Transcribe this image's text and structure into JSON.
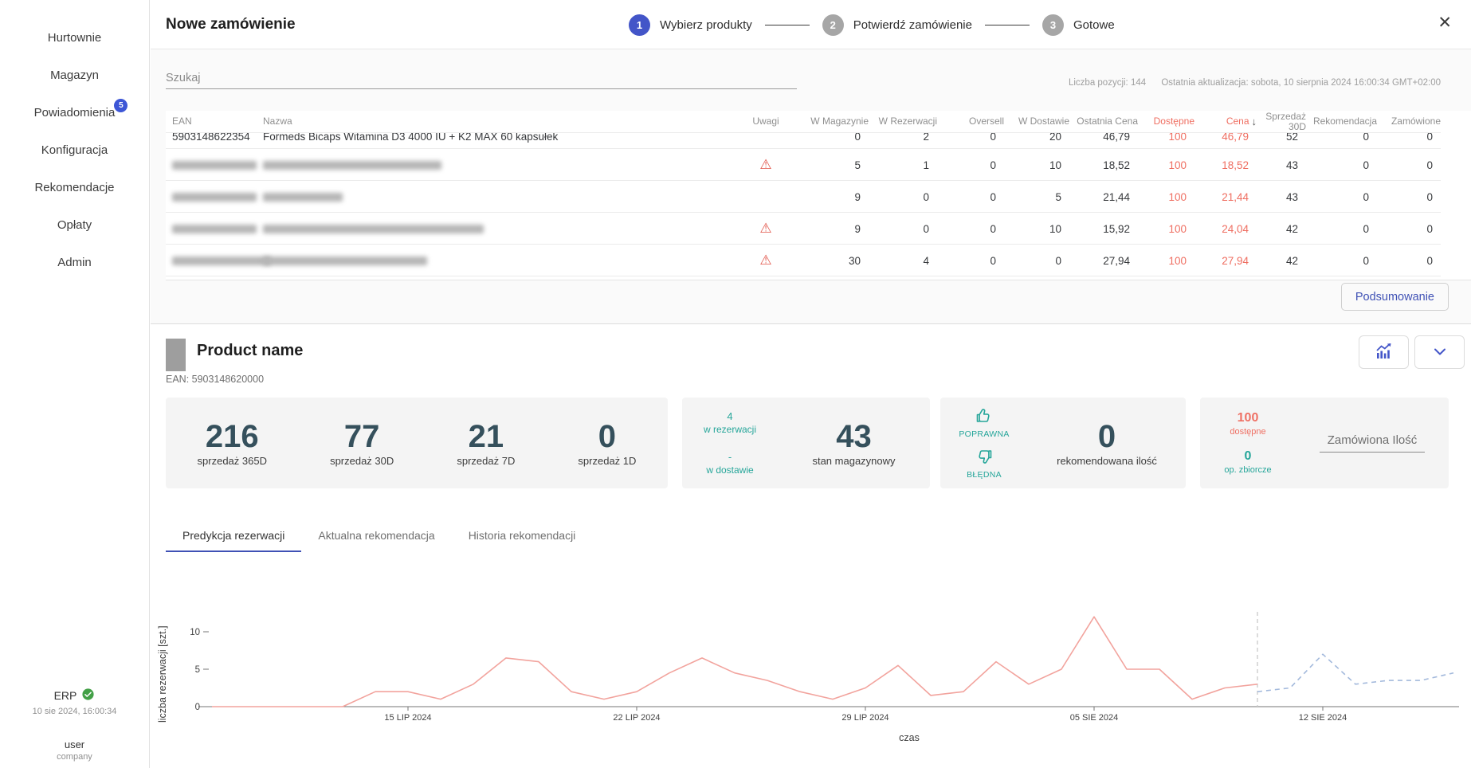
{
  "colors": {
    "accent": "#3f51b5",
    "stepper_active": "#4355c8",
    "badge": "#3d56d6",
    "danger_text": "#ef6e61",
    "teal": "#26a69a",
    "warning": "#e2574c",
    "success": "#43a047",
    "big_number": "#35505c",
    "history_line": "#f2a39d",
    "forecast_line": "#a3b9dc",
    "today_line": "#c9c9c9"
  },
  "icons": {
    "close": "✕",
    "sort_desc": "↓",
    "warning": "⚠",
    "check": "✓",
    "scroll_up": "▲",
    "scroll_down": "▼"
  },
  "sidebar": {
    "items": [
      {
        "id": "hurtownie",
        "label": "Hurtownie"
      },
      {
        "id": "magazyn",
        "label": "Magazyn"
      },
      {
        "id": "powiadomienia",
        "label": "Powiadomienia",
        "badge": "5"
      },
      {
        "id": "konfiguracja",
        "label": "Konfiguracja"
      },
      {
        "id": "rekomendacje",
        "label": "Rekomendacje"
      },
      {
        "id": "oplaty",
        "label": "Opłaty"
      },
      {
        "id": "admin",
        "label": "Admin"
      }
    ],
    "erp_label": "ERP",
    "erp_time": "10 sie 2024, 16:00:34",
    "user": "user",
    "company": "company"
  },
  "header": {
    "title": "Nowe zamówienie",
    "steps": [
      {
        "number": "1",
        "label": "Wybierz produkty",
        "active": true
      },
      {
        "number": "2",
        "label": "Potwierdź zamówienie",
        "active": false
      },
      {
        "number": "3",
        "label": "Gotowe",
        "active": false
      }
    ]
  },
  "toolbar": {
    "search_placeholder": "Szukaj",
    "items_count": "Liczba pozycji: 144",
    "last_update": "Ostatnia aktualizacja: sobota, 10 sierpnia 2024 16:00:34 GMT+02:00"
  },
  "table": {
    "columns": [
      {
        "id": "ean",
        "label": "EAN",
        "align": "left"
      },
      {
        "id": "nazwa",
        "label": "Nazwa",
        "align": "left"
      },
      {
        "id": "uwagi",
        "label": "Uwagi",
        "align": "center"
      },
      {
        "id": "w-magazynie",
        "label": "W Magazynie",
        "align": "right"
      },
      {
        "id": "w-rezerwacji",
        "label": "W Rezerwacji",
        "align": "right"
      },
      {
        "id": "oversell",
        "label": "Oversell",
        "align": "right"
      },
      {
        "id": "w-dostawie",
        "label": "W Dostawie",
        "align": "right"
      },
      {
        "id": "ostatnia-cena",
        "label": "Ostatnia Cena",
        "align": "right"
      },
      {
        "id": "dostepne",
        "label": "Dostępne",
        "align": "right",
        "red": true
      },
      {
        "id": "cena",
        "label": "Cena",
        "align": "right",
        "red": true,
        "sort": true
      },
      {
        "id": "sprzedaz-30d",
        "label": "Sprzedaż",
        "label2": "30D",
        "align": "right"
      },
      {
        "id": "rekomendacja",
        "label": "Rekomendacja",
        "align": "right"
      },
      {
        "id": "zamowione",
        "label": "Zamówione",
        "align": "right"
      }
    ],
    "rows": [
      {
        "clipped": true,
        "redacted": false,
        "warning": false,
        "ean": "5903148622354",
        "name": "Formeds Bicaps Witamina D3 4000 IU + K2 MAX 60 kapsułek",
        "values": [
          "0",
          "2",
          "0",
          "20",
          "46,79",
          "100",
          "46,79",
          "52",
          "0",
          "0"
        ]
      },
      {
        "clipped": false,
        "redacted": true,
        "warning": true,
        "values": [
          "5",
          "1",
          "0",
          "10",
          "18,52",
          "100",
          "18,52",
          "43",
          "0",
          "0"
        ]
      },
      {
        "clipped": false,
        "redacted": true,
        "warning": false,
        "values": [
          "9",
          "0",
          "0",
          "5",
          "21,44",
          "100",
          "21,44",
          "43",
          "0",
          "0"
        ]
      },
      {
        "clipped": false,
        "redacted": true,
        "warning": true,
        "values": [
          "9",
          "0",
          "0",
          "10",
          "15,92",
          "100",
          "24,04",
          "42",
          "0",
          "0"
        ]
      },
      {
        "clipped": false,
        "redacted": true,
        "warning": true,
        "values": [
          "30",
          "4",
          "0",
          "0",
          "27,94",
          "100",
          "27,94",
          "42",
          "0",
          "0"
        ]
      }
    ],
    "summary_button": "Podsumowanie"
  },
  "product": {
    "name": "Product name",
    "ean": "EAN: 5903148620000",
    "sales_stats": [
      {
        "value": "216",
        "label": "sprzedaż 365D"
      },
      {
        "value": "77",
        "label": "sprzedaż 30D"
      },
      {
        "value": "21",
        "label": "sprzedaż 7D"
      },
      {
        "value": "0",
        "label": "sprzedaż 1D"
      }
    ],
    "stock": {
      "reserved_value": "4",
      "reserved_label": "w rezerwacji",
      "delivery_value": "-",
      "delivery_label": "w dostawie",
      "value": "43",
      "label": "stan magazynowy"
    },
    "recommendation": {
      "up_label": "POPRAWNA",
      "down_label": "BŁĘDNA",
      "value": "0",
      "label": "rekomendowana ilość"
    },
    "order": {
      "available_value": "100",
      "available_label": "dostępne",
      "bulk_value": "0",
      "bulk_label": "op. zbiorcze",
      "input_placeholder": "Zamówiona Ilość"
    },
    "tabs": [
      {
        "id": "predykcja-rezerwacji",
        "label": "Predykcja rezerwacji",
        "active": true
      },
      {
        "id": "aktualna-rekomendacja",
        "label": "Aktualna rekomendacja",
        "active": false
      },
      {
        "id": "historia-rekomendacji",
        "label": "Historia rekomendacji",
        "active": false
      }
    ]
  },
  "chart_data": {
    "type": "line",
    "title": "Predykcja rezerwacji",
    "xlabel": "czas",
    "ylabel": "liczba rezerwacji [szt.]",
    "x_tick_labels": [
      "15 LIP 2024",
      "22 LIP 2024",
      "29 LIP 2024",
      "05 SIE 2024",
      "12 SIE 2024"
    ],
    "x_tick_days": [
      6,
      13,
      20,
      27,
      34
    ],
    "x_day0_date": "09 LIP 2024",
    "y_ticks": [
      0,
      5,
      10
    ],
    "ylim": [
      0,
      13
    ],
    "grid": false,
    "legend": "none",
    "today_day": 32,
    "series": [
      {
        "name": "rezerwacje (historia)",
        "style": "solid",
        "color": "#f2a39d",
        "start_day": 0,
        "values": [
          0,
          0,
          0,
          0,
          0,
          2,
          2,
          1,
          3,
          6.5,
          6,
          2,
          1,
          2,
          4.5,
          6.5,
          4.5,
          3.5,
          2,
          1,
          2.5,
          5.5,
          1.5,
          2,
          6,
          3,
          5,
          12,
          5,
          5,
          1,
          2.5,
          3
        ]
      },
      {
        "name": "predykcja rezerwacji",
        "style": "dashed",
        "color": "#a3b9dc",
        "start_day": 32,
        "values": [
          2,
          2.5,
          7,
          3,
          3.5,
          3.5,
          4.5
        ]
      }
    ]
  }
}
